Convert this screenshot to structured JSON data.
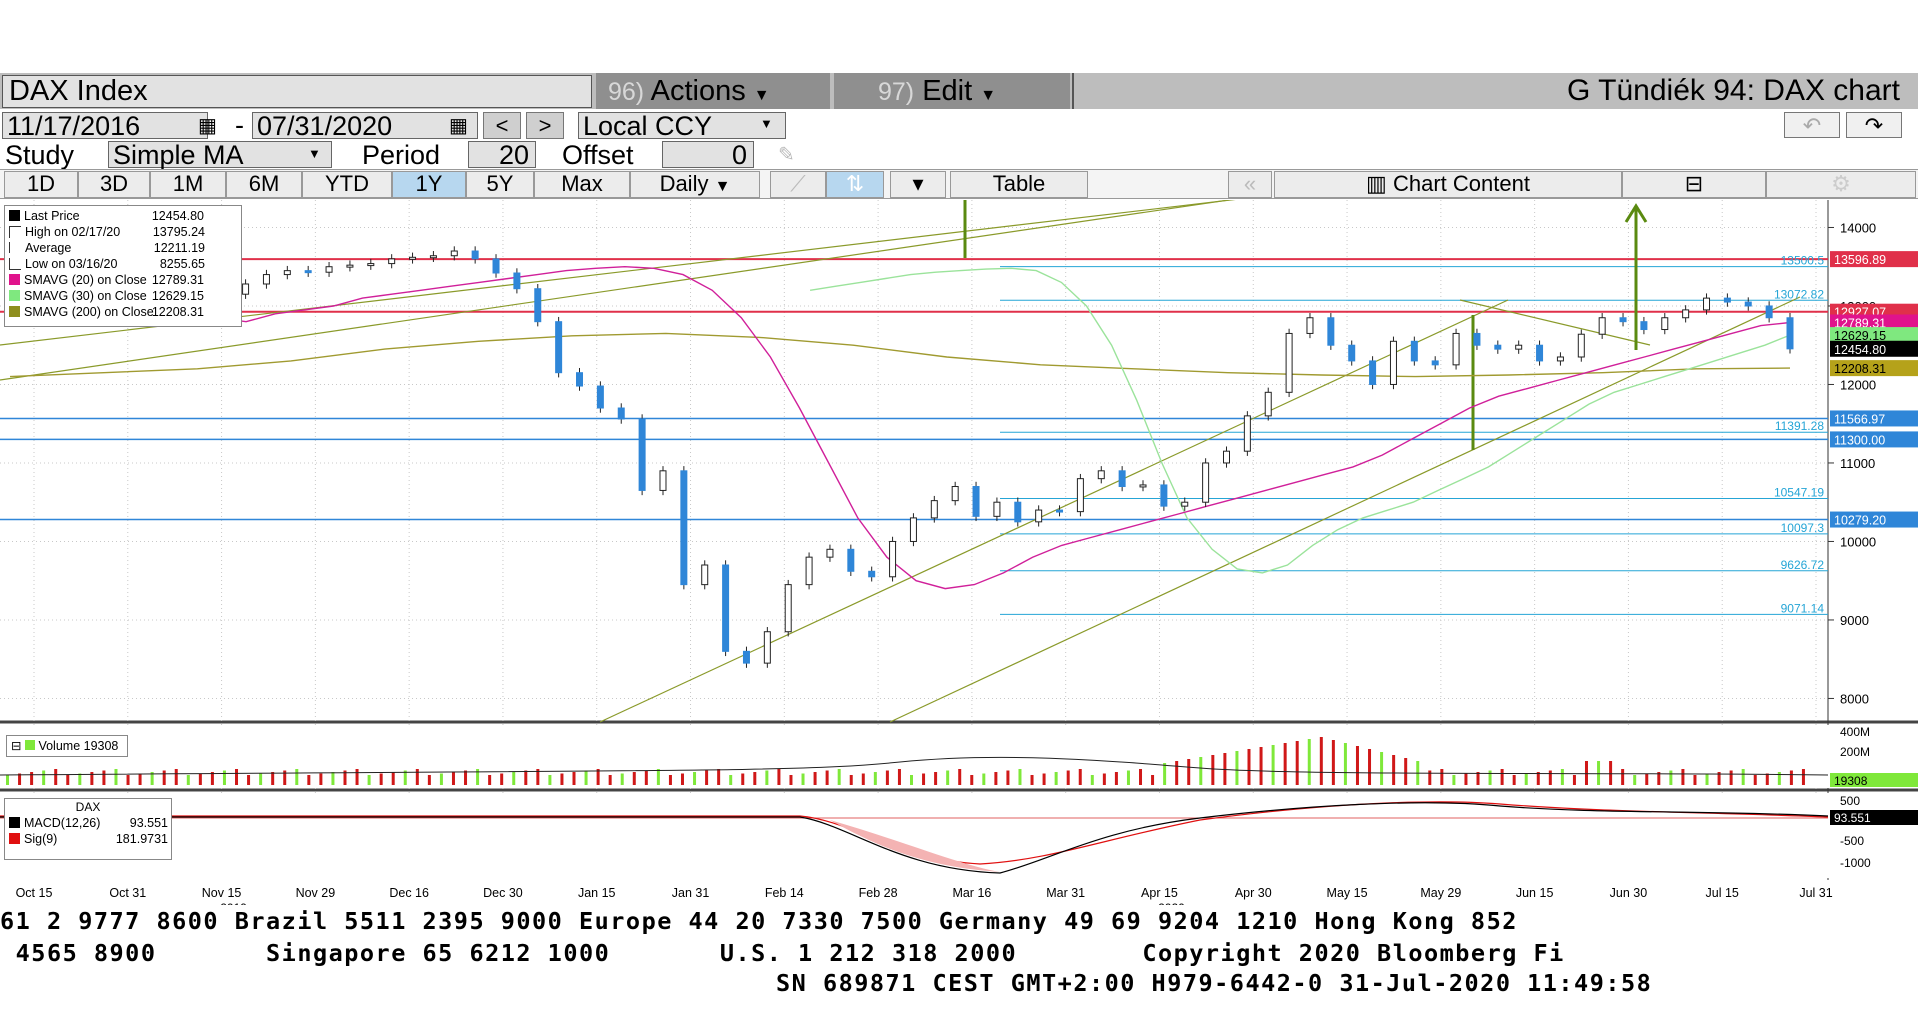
{
  "header": {
    "security": "DAX Index",
    "actions_num": "96)",
    "actions_label": "Actions",
    "edit_num": "97)",
    "edit_label": "Edit",
    "chart_name": "G Tündiék 94: DAX chart"
  },
  "date_row": {
    "start": "11/17/2016",
    "separator": "-",
    "end": "07/31/2020",
    "prev": "<",
    "next": ">",
    "currency": "Local CCY"
  },
  "study_row": {
    "study_label": "Study",
    "study_value": "Simple MA",
    "period_label": "Period",
    "period_value": "20",
    "offset_label": "Offset",
    "offset_value": "0"
  },
  "range_row": {
    "ranges": [
      "1D",
      "3D",
      "1M",
      "6M",
      "YTD",
      "1Y",
      "5Y",
      "Max"
    ],
    "selected": "1Y",
    "frequency": "Daily",
    "table_label": "Table",
    "chart_content_label": "Chart Content"
  },
  "legend": {
    "rows": [
      {
        "name": "Last Price",
        "value": "12454.80",
        "color": "#000000",
        "icon": "square"
      },
      {
        "name": "High on 02/17/20",
        "value": "13795.24",
        "color": "#000000",
        "icon": "tee"
      },
      {
        "name": "Average",
        "value": "12211.19",
        "color": "#000000",
        "icon": "dash"
      },
      {
        "name": "Low on 03/16/20",
        "value": "8255.65",
        "color": "#000000",
        "icon": "inverted-tee"
      },
      {
        "name": "SMAVG (20)  on Close",
        "value": "12789.31",
        "color": "#e0138c",
        "icon": "square"
      },
      {
        "name": "SMAVG (30)  on Close",
        "value": "12629.15",
        "color": "#7fe87f",
        "icon": "square"
      },
      {
        "name": "SMAVG (200)  on Close",
        "value": "12208.31",
        "color": "#8e8e1e",
        "icon": "square"
      }
    ]
  },
  "volume_legend": "Volume 19308",
  "macd_legend": {
    "title": "DAX",
    "rows": [
      {
        "name": "MACD(12,26)",
        "value": "93.551",
        "color": "#000000"
      },
      {
        "name": "Sig(9)",
        "value": "181.9731",
        "color": "#e01010"
      }
    ]
  },
  "chart_data": {
    "type": "candlestick",
    "y_axis": {
      "ticks": [
        8000,
        9000,
        10000,
        11000,
        12000,
        13000,
        14000
      ],
      "ylim": [
        7700,
        14350
      ],
      "tick_labels": [
        "8000",
        "9000",
        "10000",
        "11000",
        "12000",
        "13000",
        "14000"
      ]
    },
    "x_axis": {
      "ticks": [
        "Oct 15",
        "Oct 31",
        "Nov 15",
        "Nov 29",
        "Dec 16",
        "Dec 30",
        "Jan 15",
        "Jan 31",
        "Feb 14",
        "Feb 28",
        "Mar 16",
        "Mar 31",
        "Apr 15",
        "Apr 30",
        "May 15",
        "May 29",
        "Jun 15",
        "Jun 30",
        "Jul 15",
        "Jul 31"
      ],
      "year_labels": [
        "2019",
        "2020"
      ]
    },
    "close_series": [
      12900,
      13050,
      13150,
      13100,
      13130,
      13280,
      13320,
      13300,
      13250,
      13180,
      13150,
      13280,
      13400,
      13450,
      13430,
      13500,
      13520,
      13540,
      13600,
      13620,
      13640,
      13700,
      13600,
      13420,
      13220,
      12800,
      12150,
      11980,
      11700,
      11560,
      10650,
      10900,
      9450,
      9700,
      8600,
      8450,
      8850,
      9450,
      9800,
      9900,
      9620,
      9550,
      10000,
      10300,
      10520,
      10700,
      10320,
      10500,
      10250,
      10400,
      10380,
      10800,
      10900,
      10700,
      10720,
      10450,
      10500,
      11000,
      11150,
      11600,
      11900,
      12650,
      12850,
      12500,
      12300,
      12000,
      12550,
      12300,
      12250,
      12650,
      12500,
      12450,
      12500,
      12300,
      12350,
      12640,
      12850,
      12800,
      12700,
      12850,
      12950,
      13100,
      13050,
      13000,
      12850,
      12454
    ],
    "sma20": [
      12900,
      12850,
      12800,
      12900,
      12950,
      13000,
      13100,
      13150,
      13200,
      13250,
      13300,
      13350,
      13400,
      13450,
      13480,
      13500,
      13480,
      13400,
      13200,
      12850,
      12350,
      11700,
      11000,
      10300,
      9800,
      9500,
      9400,
      9450,
      9600,
      9800,
      9950,
      10050,
      10150,
      10250,
      10350,
      10450,
      10550,
      10650,
      10750,
      10850,
      10950,
      11100,
      11300,
      11500,
      11700,
      11850,
      11950,
      12050,
      12150,
      12250,
      12350,
      12450,
      12550,
      12650,
      12750,
      12789
    ],
    "sma30": [
      13200,
      13250,
      13300,
      13350,
      13400,
      13430,
      13450,
      13470,
      13480,
      13450,
      13300,
      13000,
      12500,
      11800,
      11000,
      10300,
      9900,
      9650,
      9600,
      9700,
      9950,
      10150,
      10300,
      10400,
      10500,
      10650,
      10800,
      10950,
      11150,
      11350,
      11550,
      11750,
      11900,
      12000,
      12100,
      12200,
      12300,
      12400,
      12500,
      12629
    ],
    "sma200": [
      12100,
      12150,
      12200,
      12300,
      12450,
      12550,
      12620,
      12650,
      12600,
      12500,
      12350,
      12250,
      12200,
      12150,
      12120,
      12100,
      12120,
      12150,
      12200,
      12208
    ],
    "horizontal_levels": [
      {
        "value": 13596.89,
        "label": "13596.89",
        "color": "#e0304a",
        "boxed": true
      },
      {
        "value": 13500.5,
        "label": "13500.5",
        "color": "#25a5d6",
        "boxed": false
      },
      {
        "value": 13072.82,
        "label": "13072.82",
        "color": "#25a5d6",
        "boxed": false
      },
      {
        "value": 12927.07,
        "label": "12927.07",
        "color": "#e0304a",
        "boxed": true
      },
      {
        "value": 12789.31,
        "label": "12789.31",
        "color": "#e0138c",
        "boxed": true
      },
      {
        "value": 12629.15,
        "label": "12629.15",
        "color": "#7fe87f",
        "boxed": true
      },
      {
        "value": 12454.8,
        "label": "12454.80",
        "color": "#000000",
        "boxed": true
      },
      {
        "value": 12208.31,
        "label": "12208.31",
        "color": "#b5a21a",
        "boxed": true
      },
      {
        "value": 11566.97,
        "label": "11566.97",
        "color": "#2f86d8",
        "boxed": true
      },
      {
        "value": 11391.28,
        "label": "11391.28",
        "color": "#25a5d6",
        "boxed": false
      },
      {
        "value": 11300.0,
        "label": "11300.00",
        "color": "#2f86d8",
        "boxed": true
      },
      {
        "value": 10547.19,
        "label": "10547.19",
        "color": "#25a5d6",
        "boxed": false
      },
      {
        "value": 10279.2,
        "label": "10279.20",
        "color": "#2f86d8",
        "boxed": true
      },
      {
        "value": 10097.3,
        "label": "10097.3",
        "color": "#25a5d6",
        "boxed": false
      },
      {
        "value": 9626.72,
        "label": "9626.72",
        "color": "#25a5d6",
        "boxed": false
      },
      {
        "value": 9071.14,
        "label": "9071.14",
        "color": "#25a5d6",
        "boxed": false
      }
    ],
    "volume_axis": [
      "400M",
      "200M"
    ],
    "volume_value_label": "19308",
    "macd_axis": [
      "500",
      "-500",
      "-1000"
    ],
    "macd_value_label": "93.551"
  },
  "ticker": {
    "line1": "61 2 9777 8600 Brazil 5511 2395 9000 Europe 44 20 7330 7500 Germany 49 69 9204 1210 Hong Kong 852",
    "line2": " 4565 8900       Singapore 65 6212 1000       U.S. 1 212 318 2000        Copyright 2020 Bloomberg Fi",
    "line3": "SN 689871 CEST GMT+2:00 H979-6442-0 31-Jul-2020 11:49:58"
  }
}
